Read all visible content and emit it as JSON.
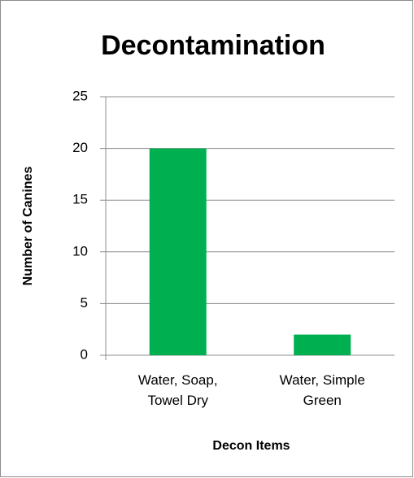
{
  "chart_data": {
    "type": "bar",
    "title": "Decontamination",
    "x_label": "Decon Items",
    "y_label": "Number of Canines",
    "categories": [
      "Water, Soap, Towel Dry",
      "Water, Simple Green"
    ],
    "values": [
      20,
      2
    ],
    "color": "#00b050",
    "ylim": [
      0,
      25
    ],
    "yticks": [
      0,
      5,
      10,
      15,
      20,
      25
    ],
    "grid": true
  }
}
